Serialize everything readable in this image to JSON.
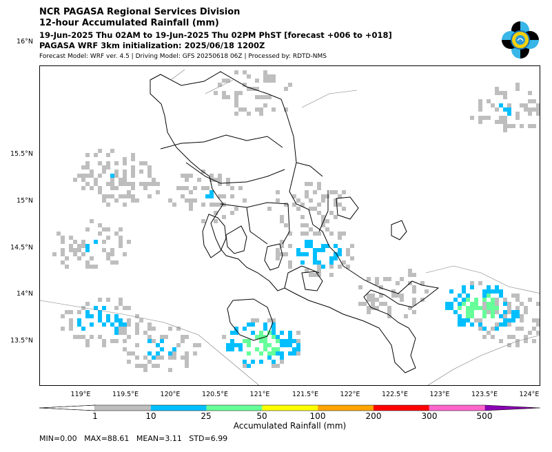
{
  "header": {
    "line1": "NCR PAGASA Regional Services Division",
    "line2": "12-hour Accumulated Rainfall (mm)",
    "line3": "19-Jun-2025 Thu 02AM to 19-Jun-2025 Thu 02PM PhST [forecast +006 to +018]",
    "line4": "PAGASA WRF 3km initialization: 2025/06/18 1200Z",
    "line5": "Forecast Model: WRF ver. 4.5 | Driving Model: GFS 20250618 06Z | Processed by: RDTD-NMS"
  },
  "logo": {
    "icon": "pagasa-seal-logo"
  },
  "map": {
    "lat_labels": [
      "16°N",
      "15.5°N",
      "15°N",
      "14.5°N",
      "14°N",
      "13.5°N"
    ],
    "lon_labels": [
      "119°E",
      "119.5°E",
      "120°E",
      "120.5°E",
      "121°E",
      "121.5°E",
      "122°E",
      "122.5°E",
      "123°E",
      "123.5°E",
      "124°E"
    ],
    "region": "Central/Southern Luzon, Philippines",
    "rain_patches": [
      {
        "lon": 119.3,
        "lat": 15.35,
        "mm": 12
      },
      {
        "lon": 119.45,
        "lat": 15.25,
        "mm": 8
      },
      {
        "lon": 119.1,
        "lat": 14.55,
        "mm": 12
      },
      {
        "lon": 119.2,
        "lat": 13.75,
        "mm": 20
      },
      {
        "lon": 119.85,
        "lat": 13.45,
        "mm": 15
      },
      {
        "lon": 120.4,
        "lat": 15.1,
        "mm": 12
      },
      {
        "lon": 121.6,
        "lat": 14.5,
        "mm": 20
      },
      {
        "lon": 121.5,
        "lat": 15.0,
        "mm": 10
      },
      {
        "lon": 121.0,
        "lat": 13.5,
        "mm": 40
      },
      {
        "lon": 122.45,
        "lat": 14.05,
        "mm": 10
      },
      {
        "lon": 123.45,
        "lat": 13.9,
        "mm": 45
      },
      {
        "lon": 123.8,
        "lat": 13.75,
        "mm": 12
      },
      {
        "lon": 120.9,
        "lat": 16.2,
        "mm": 5
      },
      {
        "lon": 123.7,
        "lat": 16.05,
        "mm": 12
      }
    ]
  },
  "colorbar": {
    "ticks": [
      "1",
      "10",
      "25",
      "50",
      "100",
      "200",
      "300",
      "500"
    ],
    "colors": [
      "#bebebe",
      "#00bfff",
      "#66ff99",
      "#ffff00",
      "#ffa500",
      "#ff0000",
      "#ff66cc",
      "#8b00b4"
    ],
    "label": "Accumulated Rainfall (mm)"
  },
  "stats": "MIN=0.00   MAX=88.61   MEAN=3.11   STD=6.99"
}
